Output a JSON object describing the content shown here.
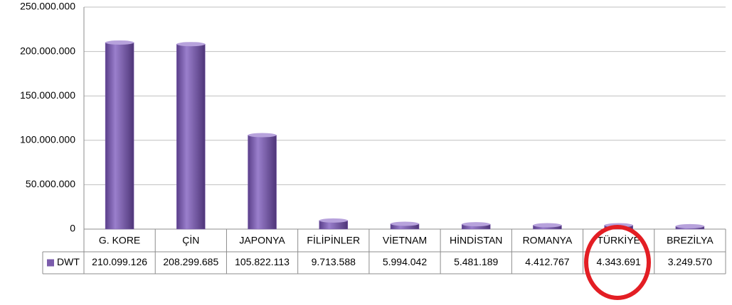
{
  "chart_data": {
    "type": "bar",
    "categories": [
      "G. KORE",
      "ÇİN",
      "JAPONYA",
      "FİLİPİNLER",
      "VİETNAM",
      "HİNDİSTAN",
      "ROMANYA",
      "TÜRKİYE",
      "BREZİLYA"
    ],
    "series": [
      {
        "name": "DWT",
        "color": "#7b5cac",
        "values": [
          210099126,
          208299685,
          105822113,
          9713588,
          5994042,
          5481189,
          4412767,
          4343691,
          3249570
        ],
        "value_labels": [
          "210.099.126",
          "208.299.685",
          "105.822.113",
          "9.713.588",
          "5.994.042",
          "5.481.189",
          "4.412.767",
          "4.343.691",
          "3.249.570"
        ]
      }
    ],
    "ylim": [
      0,
      250000000
    ],
    "yticks": [
      0,
      {
        "value": 50000000,
        "label": "50.000.000"
      },
      {
        "value": 100000000,
        "label": "100.000.000"
      },
      {
        "value": 150000000,
        "label": "150.000.000"
      },
      {
        "value": 200000000,
        "label": "200.000.000"
      },
      {
        "value": 250000000,
        "label": "250.000.000"
      }
    ],
    "grid": true
  }
}
